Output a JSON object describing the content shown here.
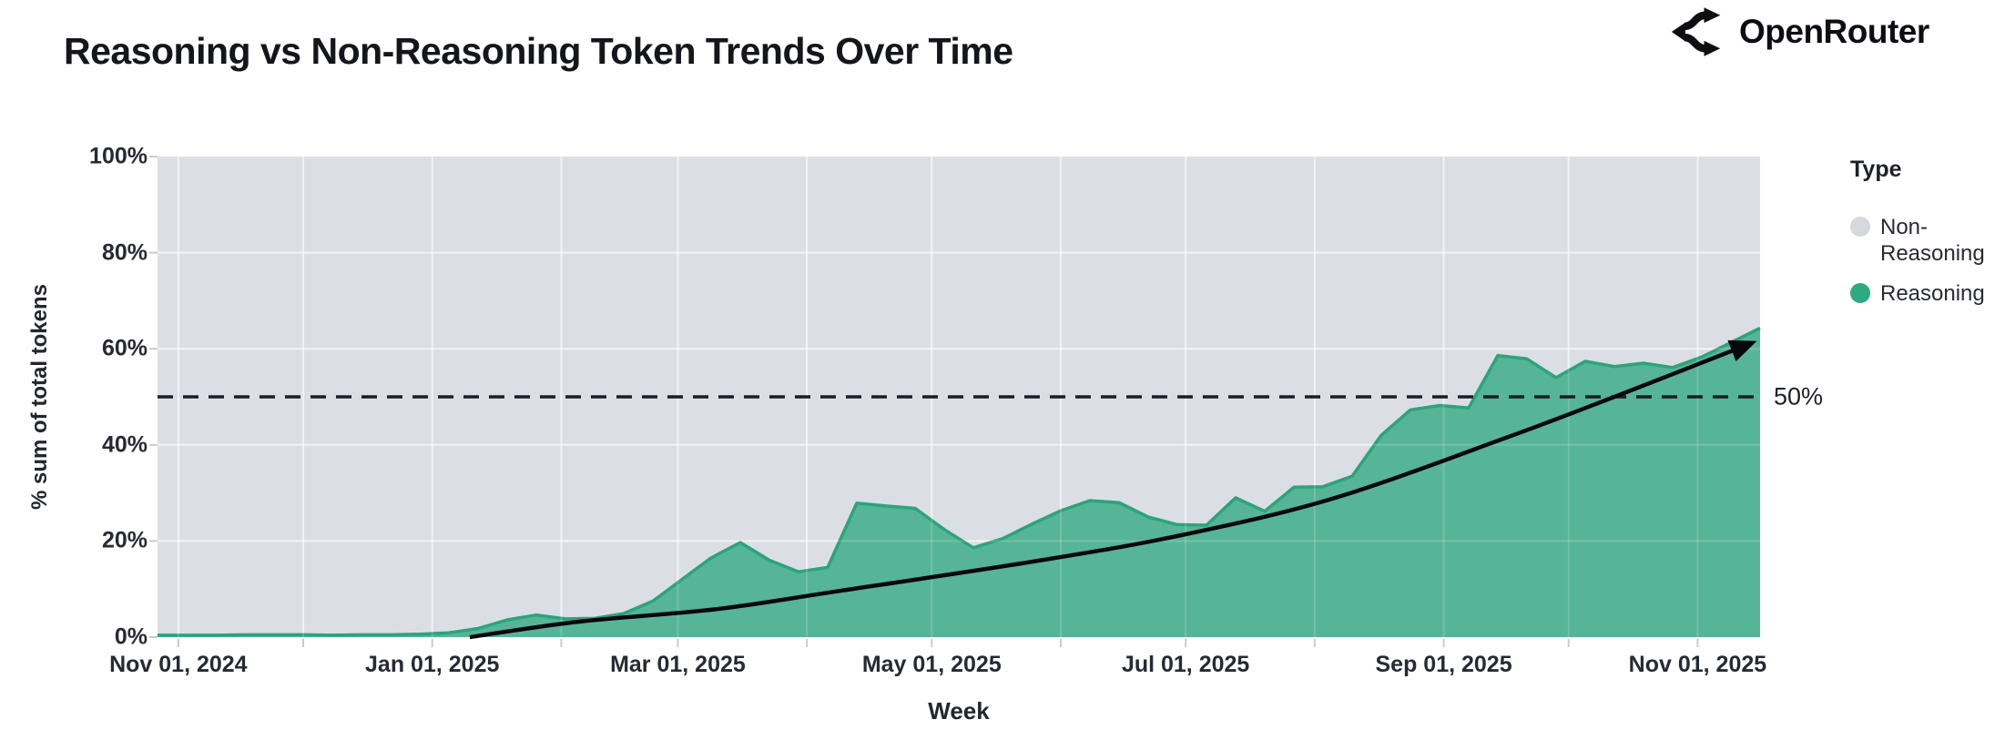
{
  "header": {
    "title": "Reasoning vs Non-Reasoning Token Trends Over Time",
    "brand": "OpenRouter"
  },
  "legend": {
    "title": "Type",
    "items": [
      {
        "label": "Non-Reasoning",
        "color": "#d6d8dd"
      },
      {
        "label": "Reasoning",
        "color": "#2faa80"
      }
    ]
  },
  "colors": {
    "non_reasoning_fill": "#dcdee5",
    "reasoning_fill": "#52b493",
    "reasoning_stroke": "#2ba47c",
    "grid_line": "#ffffff",
    "reference_line": "#1a1d26",
    "trend_line": "#06080d",
    "tick_mark": "#c7cbd3",
    "axis_text": "#262a33"
  },
  "chart_data": {
    "type": "area",
    "stacking": "percent",
    "title": "Reasoning vs Non-Reasoning Token Trends Over Time",
    "xlabel": "Week",
    "ylabel": "% sum of total tokens",
    "ylim": [
      0,
      100
    ],
    "grid": true,
    "legend_position": "right",
    "x_domain": [
      "2024-10-27",
      "2025-11-16"
    ],
    "y_ticks": [
      {
        "value": 0,
        "label": "0%"
      },
      {
        "value": 20,
        "label": "20%"
      },
      {
        "value": 40,
        "label": "40%"
      },
      {
        "value": 60,
        "label": "60%"
      },
      {
        "value": 80,
        "label": "80%"
      },
      {
        "value": 100,
        "label": "100%"
      }
    ],
    "x_ticks": [
      {
        "date": "2024-11-01",
        "label": "Nov 01, 2024"
      },
      {
        "date": "2025-01-01",
        "label": "Jan 01, 2025"
      },
      {
        "date": "2025-03-01",
        "label": "Mar 01, 2025"
      },
      {
        "date": "2025-05-01",
        "label": "May 01, 2025"
      },
      {
        "date": "2025-07-01",
        "label": "Jul 01, 2025"
      },
      {
        "date": "2025-09-01",
        "label": "Sep 01, 2025"
      },
      {
        "date": "2025-11-01",
        "label": "Nov 01, 2025"
      }
    ],
    "weeks": [
      "2024-10-27",
      "2024-11-03",
      "2024-11-10",
      "2024-11-17",
      "2024-11-24",
      "2024-12-01",
      "2024-12-08",
      "2024-12-15",
      "2024-12-22",
      "2024-12-29",
      "2025-01-05",
      "2025-01-12",
      "2025-01-19",
      "2025-01-26",
      "2025-02-02",
      "2025-02-09",
      "2025-02-16",
      "2025-02-23",
      "2025-03-02",
      "2025-03-09",
      "2025-03-16",
      "2025-03-23",
      "2025-03-30",
      "2025-04-06",
      "2025-04-13",
      "2025-04-20",
      "2025-04-27",
      "2025-05-04",
      "2025-05-11",
      "2025-05-18",
      "2025-05-25",
      "2025-06-01",
      "2025-06-08",
      "2025-06-15",
      "2025-06-22",
      "2025-06-29",
      "2025-07-06",
      "2025-07-13",
      "2025-07-20",
      "2025-07-27",
      "2025-08-03",
      "2025-08-10",
      "2025-08-17",
      "2025-08-24",
      "2025-08-31",
      "2025-09-07",
      "2025-09-14",
      "2025-09-21",
      "2025-09-28",
      "2025-10-05",
      "2025-10-12",
      "2025-10-19",
      "2025-10-26",
      "2025-11-02",
      "2025-11-09",
      "2025-11-16"
    ],
    "series": [
      {
        "name": "Reasoning",
        "values": [
          0.4,
          0.4,
          0.4,
          0.5,
          0.5,
          0.5,
          0.4,
          0.5,
          0.5,
          0.6,
          0.9,
          1.8,
          3.6,
          4.6,
          3.8,
          3.9,
          4.9,
          7.5,
          12.0,
          16.5,
          19.7,
          16.0,
          13.6,
          14.5,
          27.9,
          27.3,
          26.8,
          22.4,
          18.6,
          20.5,
          23.5,
          26.3,
          28.4,
          28.0,
          25.0,
          23.4,
          23.3,
          29.0,
          26.2,
          31.2,
          31.3,
          33.5,
          42.0,
          47.3,
          48.2,
          47.7,
          58.6,
          57.9,
          54.0,
          57.4,
          56.3,
          57.0,
          56.1,
          58.3,
          61.3,
          64.3
        ]
      },
      {
        "name": "Non-Reasoning",
        "values": [
          99.6,
          99.6,
          99.6,
          99.5,
          99.5,
          99.5,
          99.6,
          99.5,
          99.5,
          99.4,
          99.1,
          98.2,
          96.4,
          95.4,
          96.2,
          96.1,
          95.1,
          92.5,
          88.0,
          83.5,
          80.3,
          84.0,
          86.4,
          85.5,
          72.1,
          72.7,
          73.2,
          77.6,
          81.4,
          79.5,
          76.5,
          73.7,
          71.6,
          72.0,
          75.0,
          76.6,
          76.7,
          71.0,
          73.8,
          68.8,
          68.7,
          66.5,
          58.0,
          52.7,
          51.8,
          52.3,
          41.4,
          42.1,
          46.0,
          42.6,
          43.7,
          43.0,
          43.9,
          41.7,
          38.7,
          35.7
        ]
      }
    ],
    "reference_line": {
      "y": 50,
      "label": "50%",
      "style": "dashed"
    },
    "trend_arrow": {
      "points": [
        [
          "2025-01-10",
          0
        ],
        [
          "2025-02-05",
          3.2
        ],
        [
          "2025-03-10",
          5.8
        ],
        [
          "2025-04-08",
          9.5
        ],
        [
          "2025-05-28",
          16.1
        ],
        [
          "2025-07-01",
          21.4
        ],
        [
          "2025-08-06",
          29.0
        ],
        [
          "2025-09-16",
          41.5
        ],
        [
          "2025-10-12",
          50.0
        ],
        [
          "2025-11-14",
          61.2
        ]
      ]
    }
  }
}
